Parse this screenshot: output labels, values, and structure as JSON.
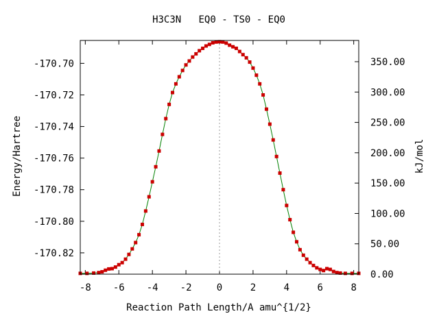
{
  "chart_data": {
    "type": "scatter",
    "title": "H3C3N   EQ0 - TS0 - EQ0",
    "xlabel": "Reaction Path Length/A amu^{1/2}",
    "ylabel": "Energy/Hartree",
    "y2label": "kJ/mol",
    "xlim": [
      -8.3,
      8.3
    ],
    "ylim": [
      -170.8335,
      -170.6855
    ],
    "y2lim": [
      0.0,
      385.0
    ],
    "x_ticks": [
      -8,
      -6,
      -4,
      -2,
      0,
      2,
      4,
      6,
      8
    ],
    "x_tick_labels": [
      "-8",
      "-6",
      "-4",
      "-2",
      "0",
      "2",
      "4",
      "6",
      "8"
    ],
    "y_ticks": [
      -170.7,
      -170.72,
      -170.74,
      -170.76,
      -170.78,
      -170.8,
      -170.82
    ],
    "y_tick_labels": [
      "-170.70",
      "-170.72",
      "-170.74",
      "-170.76",
      "-170.78",
      "-170.80",
      "-170.82"
    ],
    "y2_ticks": [
      0,
      50,
      100,
      150,
      200,
      250,
      300,
      350
    ],
    "y2_tick_labels": [
      "0.00",
      "50.00",
      "100.00",
      "150.00",
      "200.00",
      "250.00",
      "300.00",
      "350.00"
    ],
    "ts_marker_x": 0,
    "grid": false,
    "series": [
      {
        "color": "#cc0000",
        "line_color": "#008000",
        "x": [
          -8.3,
          -7.9,
          -7.5,
          -7.2,
          -7.0,
          -6.8,
          -6.6,
          -6.4,
          -6.2,
          -6.0,
          -5.8,
          -5.6,
          -5.4,
          -5.2,
          -5.0,
          -4.8,
          -4.6,
          -4.4,
          -4.2,
          -4.0,
          -3.8,
          -3.6,
          -3.4,
          -3.2,
          -3.0,
          -2.8,
          -2.6,
          -2.4,
          -2.2,
          -2.0,
          -1.8,
          -1.6,
          -1.4,
          -1.2,
          -1.0,
          -0.8,
          -0.6,
          -0.4,
          -0.2,
          0.0,
          0.2,
          0.4,
          0.6,
          0.8,
          1.0,
          1.2,
          1.4,
          1.6,
          1.8,
          2.0,
          2.2,
          2.4,
          2.6,
          2.8,
          3.0,
          3.2,
          3.4,
          3.6,
          3.8,
          4.0,
          4.2,
          4.4,
          4.6,
          4.8,
          5.0,
          5.2,
          5.4,
          5.6,
          5.8,
          6.0,
          6.2,
          6.4,
          6.6,
          6.8,
          7.0,
          7.2,
          7.5,
          7.9,
          8.3
        ],
        "y": [
          -170.833,
          -170.833,
          -170.8328,
          -170.8325,
          -170.832,
          -170.831,
          -170.8302,
          -170.83,
          -170.829,
          -170.8275,
          -170.8262,
          -170.824,
          -170.821,
          -170.8175,
          -170.8135,
          -170.8085,
          -170.802,
          -170.7935,
          -170.7845,
          -170.775,
          -170.7655,
          -170.7555,
          -170.745,
          -170.735,
          -170.726,
          -170.7185,
          -170.713,
          -170.7085,
          -170.7045,
          -170.701,
          -170.6985,
          -170.696,
          -170.694,
          -170.692,
          -170.6905,
          -170.689,
          -170.688,
          -170.687,
          -170.6865,
          -170.6863,
          -170.6865,
          -170.6872,
          -170.6885,
          -170.6895,
          -170.6905,
          -170.6925,
          -170.6945,
          -170.6965,
          -170.6992,
          -170.703,
          -170.7075,
          -170.713,
          -170.72,
          -170.729,
          -170.7385,
          -170.7485,
          -170.759,
          -170.7695,
          -170.78,
          -170.79,
          -170.799,
          -170.807,
          -170.813,
          -170.818,
          -170.8215,
          -170.824,
          -170.8262,
          -170.828,
          -170.8295,
          -170.8305,
          -170.8312,
          -170.83,
          -170.8305,
          -170.8318,
          -170.8325,
          -170.8328,
          -170.833,
          -170.833,
          -170.833
        ]
      }
    ]
  }
}
